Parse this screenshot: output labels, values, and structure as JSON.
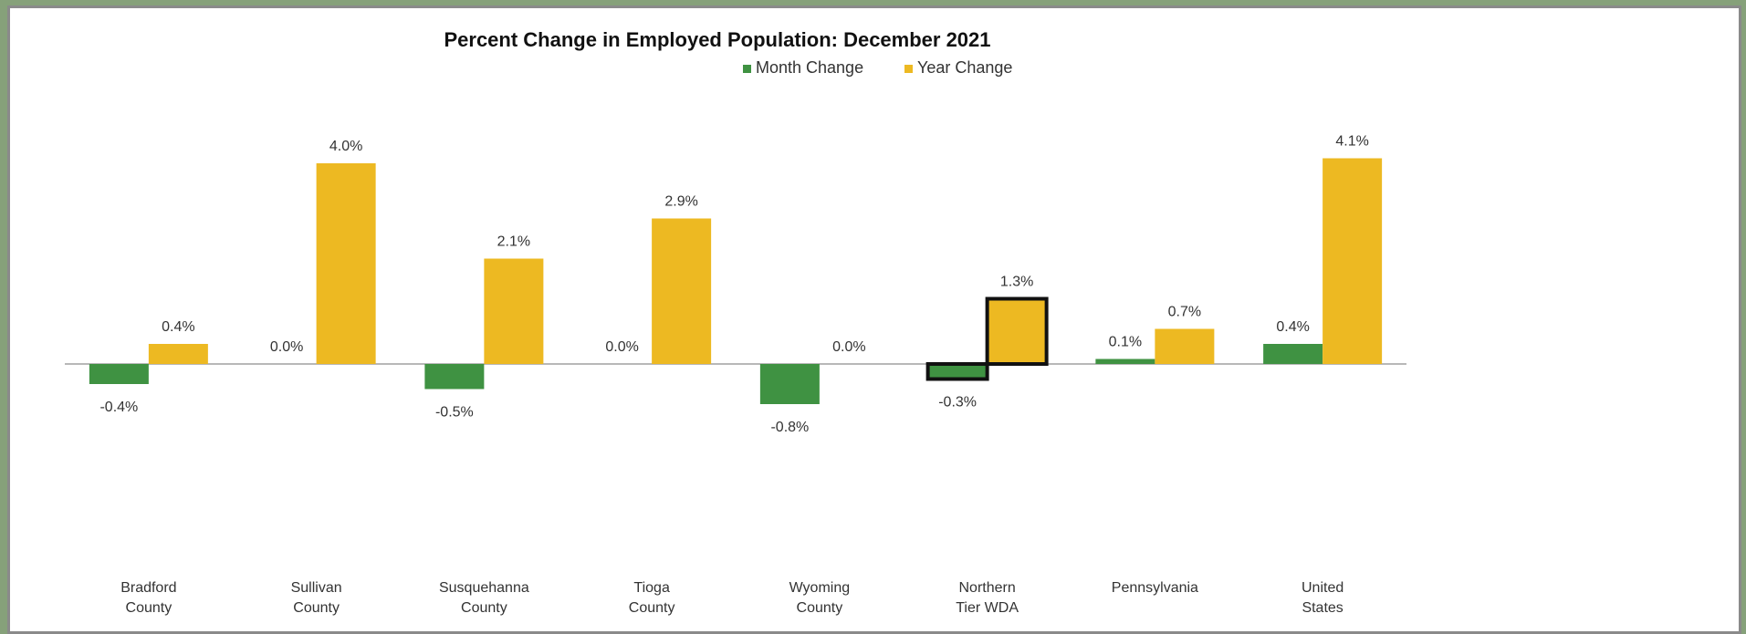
{
  "chart_data": {
    "type": "bar",
    "title": "Percent Change in Employed Population: December 2021",
    "categories": [
      [
        "Bradford",
        "County"
      ],
      [
        "Sullivan",
        "County"
      ],
      [
        "Susquehanna",
        "County"
      ],
      [
        "Tioga",
        "County"
      ],
      [
        "Wyoming",
        "County"
      ],
      [
        "Northern",
        "Tier WDA"
      ],
      [
        "Pennsylvania"
      ],
      [
        "United",
        "States"
      ]
    ],
    "series": [
      {
        "name": "Month Change",
        "color": "#3f9242",
        "values": [
          -0.4,
          0.0,
          -0.5,
          0.0,
          -0.8,
          -0.3,
          0.1,
          0.4
        ],
        "labels": [
          "-0.4%",
          "0.0%",
          "-0.5%",
          "0.0%",
          "-0.8%",
          "-0.3%",
          "0.1%",
          "0.4%"
        ]
      },
      {
        "name": "Year Change",
        "color": "#edb922",
        "values": [
          0.4,
          4.0,
          2.1,
          2.9,
          0.0,
          1.3,
          0.7,
          4.1
        ],
        "labels": [
          "0.4%",
          "4.0%",
          "2.1%",
          "2.9%",
          "0.0%",
          "1.3%",
          "0.7%",
          "4.1%"
        ]
      }
    ],
    "highlighted_category": "Northern Tier WDA",
    "legend_position": "top-center",
    "grid": false
  }
}
